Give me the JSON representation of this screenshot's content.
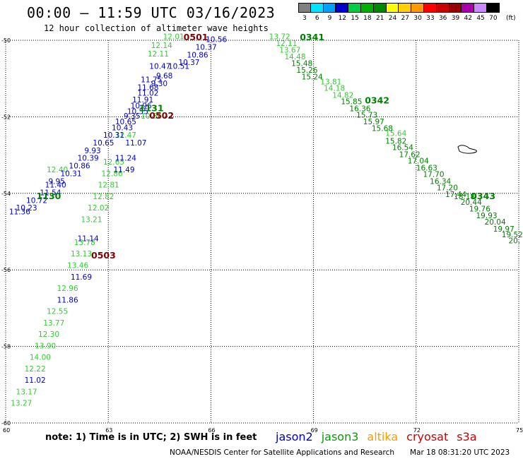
{
  "header": {
    "title": "00:00 – 11:59 UTC 03/16/2023",
    "subtitle": "12 hour collection of altimeter wave heights"
  },
  "legend": {
    "unit": "(ft)",
    "bins": [
      {
        "label": "3",
        "color": "#808080"
      },
      {
        "label": "6",
        "color": "#00e5ff"
      },
      {
        "label": "9",
        "color": "#00a0ff"
      },
      {
        "label": "12",
        "color": "#0000cc"
      },
      {
        "label": "15",
        "color": "#00cc44"
      },
      {
        "label": "18",
        "color": "#00b000"
      },
      {
        "label": "21",
        "color": "#008800"
      },
      {
        "label": "24",
        "color": "#ffff00"
      },
      {
        "label": "27",
        "color": "#ffd000"
      },
      {
        "label": "30",
        "color": "#ff9900"
      },
      {
        "label": "33",
        "color": "#ff0000"
      },
      {
        "label": "36",
        "color": "#cc0000"
      },
      {
        "label": "39",
        "color": "#990000"
      },
      {
        "label": "42",
        "color": "#aa00aa"
      },
      {
        "label": "45",
        "color": "#cc88ff"
      },
      {
        "label": "70",
        "color": "#000000"
      }
    ]
  },
  "map": {
    "lon_ticks": [
      "60",
      "63",
      "66",
      "69",
      "72",
      "75"
    ],
    "lat_ticks": [
      "-50",
      "-52",
      "-54",
      "-56",
      "-58",
      "-60"
    ],
    "bounds": {
      "lon": [
        60,
        75
      ],
      "lat": [
        -60,
        -50
      ]
    },
    "colors": {
      "jason2": "#0000cc",
      "jason3": "#33cc33",
      "green_dark": "#008000",
      "time": "#800000"
    },
    "time_labels": [
      {
        "text": "0501",
        "lon": 65.2,
        "lat": -50.0,
        "color": "#800000"
      },
      {
        "text": "0502",
        "lon": 64.2,
        "lat": -52.05,
        "color": "#800000"
      },
      {
        "text": "0503",
        "lon": 62.5,
        "lat": -55.7,
        "color": "#800000"
      },
      {
        "text": "1131",
        "lon": 63.9,
        "lat": -51.85,
        "color": "#008000"
      },
      {
        "text": "1130",
        "lon": 60.9,
        "lat": -54.15,
        "color": "#008000"
      },
      {
        "text": "0341",
        "lon": 68.6,
        "lat": -50.0,
        "color": "#008000"
      },
      {
        "text": "0342",
        "lon": 70.5,
        "lat": -51.65,
        "color": "#008000"
      },
      {
        "text": "0343",
        "lon": 73.6,
        "lat": -54.15,
        "color": "#008000"
      }
    ],
    "tracks": [
      {
        "name": "track-jason3-a",
        "color": "#33cc33",
        "points": [
          {
            "v": "12.01",
            "lon": 64.6,
            "lat": -49.97
          },
          {
            "v": "12.14",
            "lon": 64.25,
            "lat": -50.2
          },
          {
            "v": "12.11",
            "lon": 64.15,
            "lat": -50.42
          },
          {
            "v": "10.56",
            "lon": 63.95,
            "lat": -52.05
          },
          {
            "v": "12.47",
            "lon": 63.2,
            "lat": -52.55
          },
          {
            "v": "12.65",
            "lon": 62.85,
            "lat": -53.25
          },
          {
            "v": "12.86",
            "lon": 62.8,
            "lat": -53.55
          },
          {
            "v": "12.81",
            "lon": 62.7,
            "lat": -53.85
          },
          {
            "v": "12.82",
            "lon": 62.55,
            "lat": -54.15
          },
          {
            "v": "12.02",
            "lon": 62.4,
            "lat": -54.45
          },
          {
            "v": "13.21",
            "lon": 62.2,
            "lat": -54.75
          },
          {
            "v": "13.78",
            "lon": 62.0,
            "lat": -55.35
          },
          {
            "v": "13.13",
            "lon": 61.9,
            "lat": -55.65
          },
          {
            "v": "13.46",
            "lon": 61.8,
            "lat": -55.95
          },
          {
            "v": "12.96",
            "lon": 61.5,
            "lat": -56.55
          },
          {
            "v": "12.55",
            "lon": 61.2,
            "lat": -57.15
          },
          {
            "v": "13.77",
            "lon": 61.1,
            "lat": -57.45
          },
          {
            "v": "12.30",
            "lon": 60.95,
            "lat": -57.75
          },
          {
            "v": "13.90",
            "lon": 60.85,
            "lat": -58.05
          },
          {
            "v": "14.00",
            "lon": 60.7,
            "lat": -58.35
          },
          {
            "v": "12.22",
            "lon": 60.55,
            "lat": -58.65
          },
          {
            "v": "13.17",
            "lon": 60.3,
            "lat": -59.25
          },
          {
            "v": "13.27",
            "lon": 60.15,
            "lat": -59.55
          },
          {
            "v": "12.40",
            "lon": 61.2,
            "lat": -53.45
          }
        ]
      },
      {
        "name": "track-jason2-a",
        "color": "#0000cc",
        "points": [
          {
            "v": "10.56",
            "lon": 65.85,
            "lat": -50.05
          },
          {
            "v": "10.37",
            "lon": 65.55,
            "lat": -50.25
          },
          {
            "v": "10.86",
            "lon": 65.3,
            "lat": -50.45
          },
          {
            "v": "10.37",
            "lon": 65.05,
            "lat": -50.65
          },
          {
            "v": "10.47",
            "lon": 64.2,
            "lat": -50.75
          },
          {
            "v": "10.51",
            "lon": 64.75,
            "lat": -50.75
          },
          {
            "v": "11.75",
            "lon": 63.95,
            "lat": -51.1
          },
          {
            "v": "9.68",
            "lon": 64.4,
            "lat": -51.0
          },
          {
            "v": "11.68",
            "lon": 63.85,
            "lat": -51.3
          },
          {
            "v": "9.30",
            "lon": 64.25,
            "lat": -51.2
          },
          {
            "v": "11.02",
            "lon": 63.85,
            "lat": -51.45
          },
          {
            "v": "11.91",
            "lon": 63.7,
            "lat": -51.62
          },
          {
            "v": "10.96",
            "lon": 63.65,
            "lat": -51.78
          },
          {
            "v": "10.55",
            "lon": 63.55,
            "lat": -51.93
          },
          {
            "v": "9.35",
            "lon": 63.45,
            "lat": -52.05
          },
          {
            "v": "10.65",
            "lon": 63.2,
            "lat": -52.2
          },
          {
            "v": "10.43",
            "lon": 63.1,
            "lat": -52.35
          },
          {
            "v": "10.31",
            "lon": 62.85,
            "lat": -52.55
          },
          {
            "v": "11.07",
            "lon": 63.5,
            "lat": -52.75
          },
          {
            "v": "10.65",
            "lon": 62.55,
            "lat": -52.75
          },
          {
            "v": "9.93",
            "lon": 62.3,
            "lat": -52.95
          },
          {
            "v": "10.39",
            "lon": 62.1,
            "lat": -53.15
          },
          {
            "v": "11.24",
            "lon": 63.2,
            "lat": -53.15
          },
          {
            "v": "10.86",
            "lon": 61.85,
            "lat": -53.35
          },
          {
            "v": "11.49",
            "lon": 63.15,
            "lat": -53.45
          },
          {
            "v": "10.31",
            "lon": 61.6,
            "lat": -53.55
          },
          {
            "v": "9.95",
            "lon": 61.25,
            "lat": -53.75
          },
          {
            "v": "11.54",
            "lon": 61.0,
            "lat": -54.05
          },
          {
            "v": "11.40",
            "lon": 61.15,
            "lat": -53.85
          },
          {
            "v": "10.72",
            "lon": 60.6,
            "lat": -54.25
          },
          {
            "v": "10.23",
            "lon": 60.3,
            "lat": -54.45
          },
          {
            "v": "11.36",
            "lon": 60.1,
            "lat": -54.55
          },
          {
            "v": "11.14",
            "lon": 62.1,
            "lat": -55.25
          },
          {
            "v": "11.69",
            "lon": 61.9,
            "lat": -56.25
          },
          {
            "v": "11.86",
            "lon": 61.5,
            "lat": -56.85
          },
          {
            "v": "11.02",
            "lon": 60.55,
            "lat": -58.95
          }
        ]
      },
      {
        "name": "track-jason3-b",
        "color": "#33cc33",
        "points": [
          {
            "v": "13.72",
            "lon": 67.7,
            "lat": -49.97
          },
          {
            "v": "12.11",
            "lon": 67.9,
            "lat": -50.15
          },
          {
            "v": "13.67",
            "lon": 68.0,
            "lat": -50.32
          },
          {
            "v": "14.48",
            "lon": 68.15,
            "lat": -50.5
          },
          {
            "v": "13.81",
            "lon": 69.2,
            "lat": -51.15
          },
          {
            "v": "14.18",
            "lon": 69.3,
            "lat": -51.32
          },
          {
            "v": "14.82",
            "lon": 69.55,
            "lat": -51.5
          },
          {
            "v": "15.64",
            "lon": 71.1,
            "lat": -52.5
          }
        ]
      },
      {
        "name": "track-jason3-dark",
        "color": "#008000",
        "points": [
          {
            "v": "15.48",
            "lon": 68.35,
            "lat": -50.67
          },
          {
            "v": "15.26",
            "lon": 68.5,
            "lat": -50.85
          },
          {
            "v": "15.24",
            "lon": 68.65,
            "lat": -51.02
          },
          {
            "v": "15.85",
            "lon": 69.8,
            "lat": -51.67
          },
          {
            "v": "16.36",
            "lon": 70.05,
            "lat": -51.85
          },
          {
            "v": "15.73",
            "lon": 70.25,
            "lat": -52.02
          },
          {
            "v": "15.97",
            "lon": 70.45,
            "lat": -52.2
          },
          {
            "v": "15.68",
            "lon": 70.7,
            "lat": -52.37
          },
          {
            "v": "15.82",
            "lon": 71.1,
            "lat": -52.7
          },
          {
            "v": "16.54",
            "lon": 71.3,
            "lat": -52.87
          },
          {
            "v": "17.62",
            "lon": 71.5,
            "lat": -53.05
          },
          {
            "v": "17.04",
            "lon": 71.75,
            "lat": -53.22
          },
          {
            "v": "16.63",
            "lon": 72.0,
            "lat": -53.4
          },
          {
            "v": "17.70",
            "lon": 72.2,
            "lat": -53.57
          },
          {
            "v": "16.34",
            "lon": 72.4,
            "lat": -53.75
          },
          {
            "v": "17.20",
            "lon": 72.6,
            "lat": -53.92
          },
          {
            "v": "17.44",
            "lon": 72.85,
            "lat": -54.1
          },
          {
            "v": "18.18",
            "lon": 73.1,
            "lat": -54.15
          },
          {
            "v": "20.44",
            "lon": 73.3,
            "lat": -54.3
          },
          {
            "v": "19.76",
            "lon": 73.55,
            "lat": -54.47
          },
          {
            "v": "19.93",
            "lon": 73.75,
            "lat": -54.65
          },
          {
            "v": "20.04",
            "lon": 74.0,
            "lat": -54.82
          },
          {
            "v": "19.97",
            "lon": 74.25,
            "lat": -55.0
          },
          {
            "v": "19.52",
            "lon": 74.5,
            "lat": -55.15
          },
          {
            "v": "20.",
            "lon": 74.7,
            "lat": -55.3
          }
        ]
      }
    ]
  },
  "footer": {
    "note": "note: 1) Time is in UTC; 2) SWH is in feet",
    "satellites": [
      {
        "label": "jason2",
        "color": "#0000cc"
      },
      {
        "label": "jason3",
        "color": "#00a000"
      },
      {
        "label": "altika",
        "color": "#ff9900"
      },
      {
        "label": "cryosat",
        "color": "#cc0000"
      },
      {
        "label": "s3a",
        "color": "#cc0000"
      }
    ],
    "credit": "NOAA/NESDIS Center for Satellite Applications and Research",
    "timestamp": "Mar 18 08:31:20 UTC 2023"
  }
}
